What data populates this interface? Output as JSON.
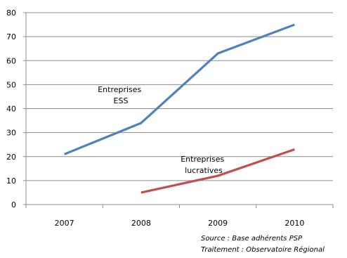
{
  "chart_data": {
    "type": "line",
    "categories": [
      "2007",
      "2008",
      "2009",
      "2010"
    ],
    "ylim": [
      0,
      80
    ],
    "yticks": [
      0,
      10,
      20,
      30,
      40,
      50,
      60,
      70,
      80
    ],
    "grid": true,
    "legend": "none",
    "series": [
      {
        "name": "Entreprises ESS",
        "label_lines": [
          "Entreprises",
          "ESS"
        ],
        "color": "#4f81bd",
        "values": [
          21,
          34,
          63,
          75
        ]
      },
      {
        "name": "Entreprises lucratives",
        "label_lines": [
          "Entreprises",
          "lucratives"
        ],
        "color": "#c0504d",
        "values": [
          null,
          5,
          12,
          23
        ]
      }
    ],
    "annotations": {
      "source": "Source : Base adhérents PSP",
      "treatment": "Traitement : Observatoire Régional"
    }
  }
}
